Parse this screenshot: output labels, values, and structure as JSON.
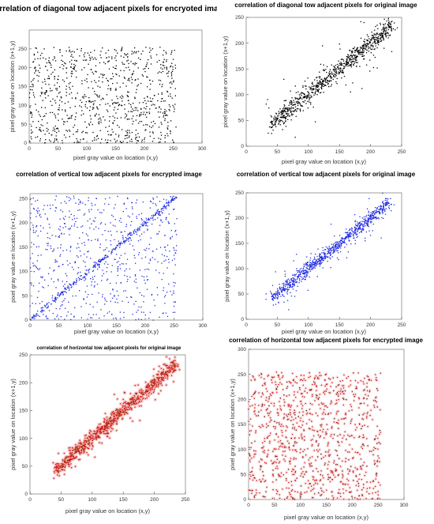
{
  "chart_data": [
    {
      "type": "scatter",
      "title": "correlation of diagonal tow adjacent pixels for encryoted image",
      "xlabel": "pixel gray value on location (x,y)",
      "ylabel": "pixel gray value on location (x+1,y)",
      "xlim": [
        0,
        300
      ],
      "ylim": [
        0,
        300
      ],
      "xticks": [
        0,
        50,
        100,
        150,
        200,
        250,
        300
      ],
      "yticks": [
        0,
        50,
        100,
        150,
        200,
        250
      ],
      "point_color": "#000000",
      "distribution": {
        "kind": "uniform",
        "x_range": [
          0,
          255
        ],
        "y_range": [
          0,
          255
        ],
        "count": 900
      }
    },
    {
      "type": "scatter",
      "title": "correlation of diagonal tow adjacent pixels for original image",
      "xlabel": "pixel gray value on location (x,y)",
      "ylabel": "pixel gray value on location (x+1,y)",
      "xlim": [
        0,
        250
      ],
      "ylim": [
        0,
        250
      ],
      "xticks": [
        0,
        50,
        100,
        150,
        200,
        250
      ],
      "yticks": [
        0,
        50,
        100,
        150,
        200,
        250
      ],
      "point_color": "#000000",
      "distribution": {
        "kind": "diagonal",
        "x_range": [
          40,
          235
        ],
        "spread": 8,
        "outlier_spread": 25,
        "count": 900
      }
    },
    {
      "type": "scatter",
      "title": "correlation of vertical tow adjacent pixels for encrypted image",
      "xlabel": "pixel gray value on location (x,y)",
      "ylabel": "pixel gray value on location (x+1,y)",
      "xlim": [
        0,
        300
      ],
      "ylim": [
        0,
        260
      ],
      "xticks": [
        0,
        50,
        100,
        150,
        200,
        250,
        300
      ],
      "yticks": [
        0,
        50,
        100,
        150,
        200,
        250
      ],
      "point_color": "#1f2be0",
      "distribution": {
        "kind": "uniform_plus_diagonal",
        "x_range": [
          0,
          255
        ],
        "y_range": [
          0,
          255
        ],
        "count": 700,
        "diagonal_count": 320
      }
    },
    {
      "type": "scatter",
      "title": "correlation of vertical tow adjacent pixels for original image",
      "xlabel": "pixel gray value on location (x,y)",
      "ylabel": "pixel gray value on location (x+1,y)",
      "xlim": [
        0,
        250
      ],
      "ylim": [
        0,
        250
      ],
      "xticks": [
        0,
        50,
        100,
        150,
        200,
        250
      ],
      "yticks": [
        0,
        50,
        100,
        150,
        200,
        250
      ],
      "point_color": "#1f2be0",
      "distribution": {
        "kind": "diagonal",
        "x_range": [
          40,
          230
        ],
        "spread": 6,
        "outlier_spread": 18,
        "count": 900
      }
    },
    {
      "type": "scatter",
      "title": "correlation of horizontal tow adjacent pixels for original image",
      "xlabel": "pixel gray value on location (x,y)",
      "ylabel": "pixel gray value on location (x+1,y)",
      "xlim": [
        0,
        250
      ],
      "ylim": [
        0,
        250
      ],
      "xticks": [
        0,
        50,
        100,
        150,
        200,
        250
      ],
      "yticks": [
        0,
        50,
        100,
        150,
        200,
        250
      ],
      "point_color": "#cc1111",
      "halo_color": "#f6b3b3",
      "core_color": "#7a5a10",
      "distribution": {
        "kind": "diagonal",
        "x_range": [
          40,
          235
        ],
        "spread": 6,
        "outlier_spread": 15,
        "count": 900
      }
    },
    {
      "type": "scatter",
      "title": "correlation of horizontal tow adjacent pixels for encrypted image",
      "xlabel": "pixel gray value on location (x,y)",
      "ylabel": "pixel gray value on location (x+1,y)",
      "xlim": [
        0,
        300
      ],
      "ylim": [
        0,
        300
      ],
      "xticks": [
        0,
        50,
        100,
        150,
        200,
        250,
        300
      ],
      "yticks": [
        0,
        50,
        100,
        150,
        200,
        250,
        300
      ],
      "point_color": "#cc1111",
      "halo_color": "#f8d4d4",
      "core_color": "#222222",
      "distribution": {
        "kind": "uniform",
        "x_range": [
          0,
          255
        ],
        "y_range": [
          0,
          255
        ],
        "count": 1000
      }
    }
  ]
}
